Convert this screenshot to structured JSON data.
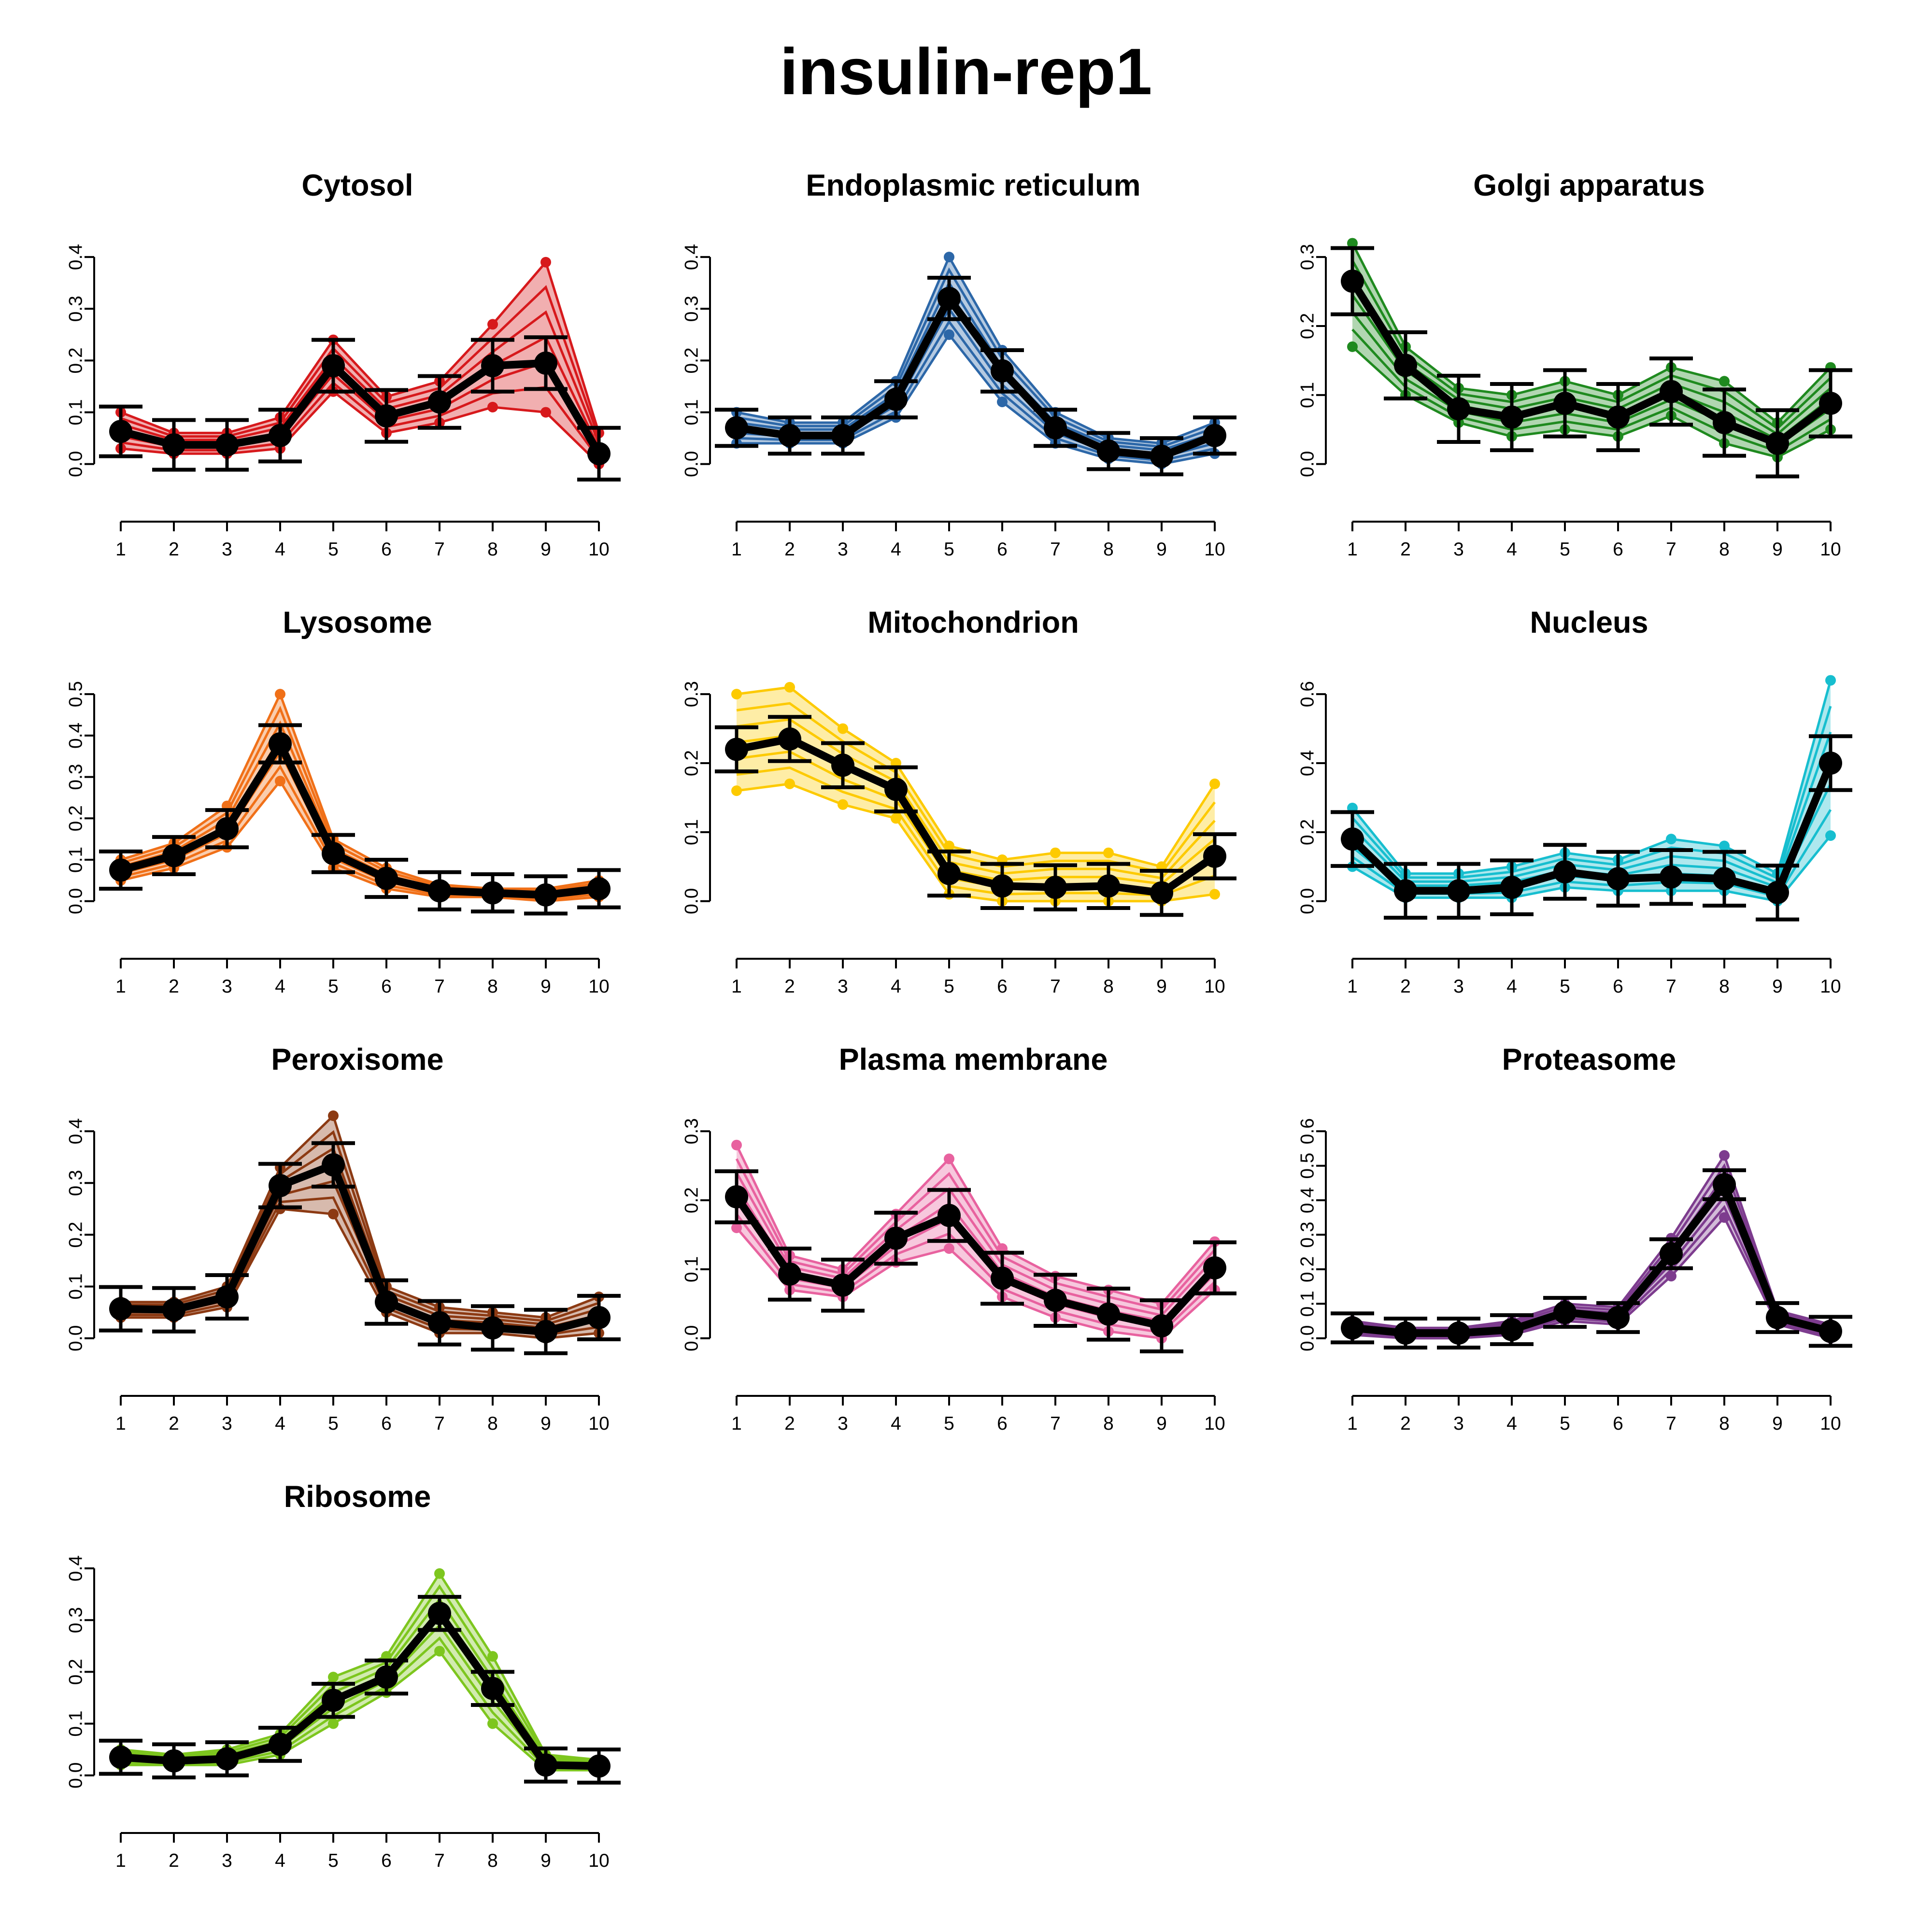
{
  "title": "insulin-rep1",
  "fractions": [
    "1",
    "2",
    "3",
    "4",
    "5",
    "6",
    "7",
    "8",
    "9",
    "10"
  ],
  "chart_data": [
    {
      "type": "line",
      "title": "Cytosol",
      "color": "#D7191C",
      "ylim": [
        0,
        0.4
      ],
      "yticks": [
        0,
        0.1,
        0.2,
        0.3,
        0.4
      ],
      "mean": [
        0.063,
        0.037,
        0.037,
        0.055,
        0.19,
        0.093,
        0.12,
        0.19,
        0.195,
        0.02
      ],
      "sd": [
        0.048,
        0.048,
        0.048,
        0.05,
        0.05,
        0.05,
        0.05,
        0.05,
        0.05,
        0.05
      ],
      "profile_range": [
        [
          0.03,
          0.1
        ],
        [
          0.02,
          0.06
        ],
        [
          0.02,
          0.06
        ],
        [
          0.03,
          0.09
        ],
        [
          0.14,
          0.24
        ],
        [
          0.06,
          0.13
        ],
        [
          0.08,
          0.16
        ],
        [
          0.11,
          0.27
        ],
        [
          0.1,
          0.39
        ],
        [
          0.0,
          0.06
        ]
      ]
    },
    {
      "type": "line",
      "title": "Endoplasmic reticulum",
      "color": "#2C67A8",
      "ylim": [
        0,
        0.4
      ],
      "yticks": [
        0,
        0.1,
        0.2,
        0.3,
        0.4
      ],
      "mean": [
        0.07,
        0.055,
        0.055,
        0.125,
        0.32,
        0.18,
        0.07,
        0.025,
        0.015,
        0.055
      ],
      "sd": [
        0.035,
        0.035,
        0.035,
        0.035,
        0.04,
        0.04,
        0.035,
        0.035,
        0.035,
        0.035
      ],
      "profile_range": [
        [
          0.04,
          0.1
        ],
        [
          0.04,
          0.08
        ],
        [
          0.04,
          0.08
        ],
        [
          0.09,
          0.16
        ],
        [
          0.25,
          0.4
        ],
        [
          0.12,
          0.22
        ],
        [
          0.04,
          0.1
        ],
        [
          0.01,
          0.05
        ],
        [
          0.0,
          0.04
        ],
        [
          0.02,
          0.08
        ]
      ]
    },
    {
      "type": "line",
      "title": "Golgi apparatus",
      "color": "#1F8A1F",
      "ylim": [
        0,
        0.3
      ],
      "yticks": [
        0,
        0.1,
        0.2,
        0.3
      ],
      "mean": [
        0.265,
        0.143,
        0.08,
        0.068,
        0.088,
        0.068,
        0.105,
        0.06,
        0.03,
        0.088
      ],
      "sd": [
        0.048,
        0.048,
        0.048,
        0.048,
        0.048,
        0.048,
        0.048,
        0.048,
        0.048,
        0.048
      ],
      "profile_range": [
        [
          0.17,
          0.32
        ],
        [
          0.1,
          0.17
        ],
        [
          0.06,
          0.11
        ],
        [
          0.04,
          0.1
        ],
        [
          0.05,
          0.12
        ],
        [
          0.04,
          0.1
        ],
        [
          0.07,
          0.14
        ],
        [
          0.03,
          0.12
        ],
        [
          0.01,
          0.06
        ],
        [
          0.05,
          0.14
        ]
      ]
    },
    {
      "type": "line",
      "title": "Lysosome",
      "color": "#F07018",
      "ylim": [
        0,
        0.5
      ],
      "yticks": [
        0,
        0.1,
        0.2,
        0.3,
        0.4,
        0.5
      ],
      "mean": [
        0.075,
        0.11,
        0.175,
        0.38,
        0.115,
        0.055,
        0.025,
        0.02,
        0.015,
        0.03
      ],
      "sd": [
        0.045,
        0.045,
        0.045,
        0.045,
        0.045,
        0.045,
        0.045,
        0.045,
        0.045,
        0.045
      ],
      "profile_range": [
        [
          0.05,
          0.1
        ],
        [
          0.08,
          0.14
        ],
        [
          0.13,
          0.23
        ],
        [
          0.29,
          0.5
        ],
        [
          0.08,
          0.15
        ],
        [
          0.03,
          0.08
        ],
        [
          0.01,
          0.04
        ],
        [
          0.01,
          0.03
        ],
        [
          0.0,
          0.03
        ],
        [
          0.01,
          0.05
        ]
      ]
    },
    {
      "type": "line",
      "title": "Mitochondrion",
      "color": "#FDCA00",
      "ylim": [
        0,
        0.3
      ],
      "yticks": [
        0,
        0.1,
        0.2,
        0.3
      ],
      "mean": [
        0.22,
        0.235,
        0.197,
        0.162,
        0.04,
        0.022,
        0.02,
        0.022,
        0.012,
        0.065
      ],
      "sd": [
        0.032,
        0.032,
        0.032,
        0.032,
        0.032,
        0.032,
        0.032,
        0.032,
        0.032,
        0.032
      ],
      "profile_range": [
        [
          0.16,
          0.3
        ],
        [
          0.17,
          0.31
        ],
        [
          0.14,
          0.25
        ],
        [
          0.12,
          0.2
        ],
        [
          0.01,
          0.08
        ],
        [
          0.0,
          0.06
        ],
        [
          0.0,
          0.07
        ],
        [
          0.0,
          0.07
        ],
        [
          0.0,
          0.05
        ],
        [
          0.01,
          0.17
        ]
      ]
    },
    {
      "type": "line",
      "title": "Nucleus",
      "color": "#17BECF",
      "ylim": [
        0,
        0.6
      ],
      "yticks": [
        0,
        0.2,
        0.4,
        0.6
      ],
      "mean": [
        0.18,
        0.03,
        0.03,
        0.04,
        0.085,
        0.065,
        0.07,
        0.065,
        0.025,
        0.4
      ],
      "sd": [
        0.078,
        0.078,
        0.078,
        0.078,
        0.078,
        0.078,
        0.078,
        0.078,
        0.078,
        0.078
      ],
      "profile_range": [
        [
          0.1,
          0.27
        ],
        [
          0.01,
          0.08
        ],
        [
          0.01,
          0.08
        ],
        [
          0.01,
          0.1
        ],
        [
          0.04,
          0.14
        ],
        [
          0.03,
          0.12
        ],
        [
          0.03,
          0.18
        ],
        [
          0.03,
          0.16
        ],
        [
          0.0,
          0.08
        ],
        [
          0.19,
          0.64
        ]
      ]
    },
    {
      "type": "line",
      "title": "Peroxisome",
      "color": "#8C3A13",
      "ylim": [
        0,
        0.4
      ],
      "yticks": [
        0,
        0.1,
        0.2,
        0.3,
        0.4
      ],
      "mean": [
        0.057,
        0.055,
        0.08,
        0.295,
        0.335,
        0.07,
        0.03,
        0.02,
        0.013,
        0.04
      ],
      "sd": [
        0.042,
        0.042,
        0.042,
        0.042,
        0.042,
        0.042,
        0.042,
        0.042,
        0.042,
        0.042
      ],
      "profile_range": [
        [
          0.04,
          0.07
        ],
        [
          0.04,
          0.07
        ],
        [
          0.06,
          0.1
        ],
        [
          0.25,
          0.33
        ],
        [
          0.24,
          0.43
        ],
        [
          0.05,
          0.1
        ],
        [
          0.01,
          0.06
        ],
        [
          0.01,
          0.05
        ],
        [
          0.0,
          0.04
        ],
        [
          0.01,
          0.08
        ]
      ]
    },
    {
      "type": "line",
      "title": "Plasma membrane",
      "color": "#E8629F",
      "ylim": [
        0,
        0.3
      ],
      "yticks": [
        0,
        0.1,
        0.2,
        0.3
      ],
      "mean": [
        0.205,
        0.093,
        0.077,
        0.145,
        0.178,
        0.087,
        0.055,
        0.035,
        0.018,
        0.102
      ],
      "sd": [
        0.037,
        0.037,
        0.037,
        0.037,
        0.037,
        0.037,
        0.037,
        0.037,
        0.037,
        0.037
      ],
      "profile_range": [
        [
          0.16,
          0.28
        ],
        [
          0.07,
          0.12
        ],
        [
          0.06,
          0.1
        ],
        [
          0.11,
          0.18
        ],
        [
          0.13,
          0.26
        ],
        [
          0.06,
          0.13
        ],
        [
          0.03,
          0.09
        ],
        [
          0.01,
          0.07
        ],
        [
          0.0,
          0.05
        ],
        [
          0.07,
          0.14
        ]
      ]
    },
    {
      "type": "line",
      "title": "Proteasome",
      "color": "#7D3C8E",
      "ylim": [
        0,
        0.6
      ],
      "yticks": [
        0,
        0.1,
        0.2,
        0.3,
        0.4,
        0.5,
        0.6
      ],
      "mean": [
        0.03,
        0.015,
        0.015,
        0.025,
        0.075,
        0.06,
        0.245,
        0.445,
        0.06,
        0.02
      ],
      "sd": [
        0.042,
        0.042,
        0.042,
        0.042,
        0.042,
        0.042,
        0.042,
        0.042,
        0.042,
        0.042
      ],
      "profile_range": [
        [
          0.01,
          0.05
        ],
        [
          0.0,
          0.03
        ],
        [
          0.0,
          0.03
        ],
        [
          0.01,
          0.05
        ],
        [
          0.05,
          0.1
        ],
        [
          0.04,
          0.09
        ],
        [
          0.18,
          0.29
        ],
        [
          0.35,
          0.53
        ],
        [
          0.04,
          0.08
        ],
        [
          0.0,
          0.04
        ]
      ]
    },
    {
      "type": "line",
      "title": "Ribosome",
      "color": "#7DC61E",
      "ylim": [
        0,
        0.4
      ],
      "yticks": [
        0,
        0.1,
        0.2,
        0.3,
        0.4
      ],
      "mean": [
        0.035,
        0.028,
        0.032,
        0.06,
        0.145,
        0.19,
        0.313,
        0.168,
        0.02,
        0.018
      ],
      "sd": [
        0.032,
        0.032,
        0.032,
        0.032,
        0.032,
        0.032,
        0.032,
        0.032,
        0.032,
        0.032
      ],
      "profile_range": [
        [
          0.02,
          0.05
        ],
        [
          0.02,
          0.04
        ],
        [
          0.02,
          0.05
        ],
        [
          0.04,
          0.08
        ],
        [
          0.1,
          0.19
        ],
        [
          0.16,
          0.23
        ],
        [
          0.24,
          0.39
        ],
        [
          0.1,
          0.23
        ],
        [
          0.01,
          0.04
        ],
        [
          0.01,
          0.03
        ]
      ]
    }
  ]
}
